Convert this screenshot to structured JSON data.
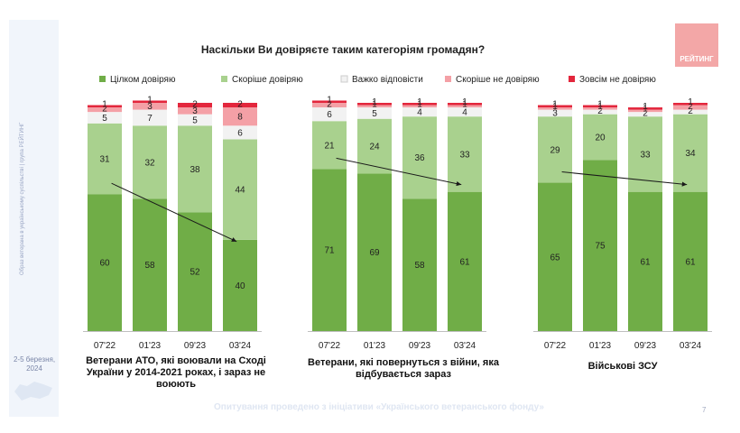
{
  "slide": {
    "title": "Наскільки Ви довіряєте таким категоріям громадян?",
    "logo_text": "РЕЙТИНГ",
    "sidebar_text": "Образ ветерана в українському суспільстві | група РЕЙТИНГ",
    "date_text": "2-5 березня, 2024",
    "footer": "Опитування проведено з ініціативи «Українського ветеранського фонду»",
    "page_number": "7"
  },
  "colors": {
    "full_trust": "#70ad47",
    "rather_trust": "#a9d18e",
    "hard_to_say": "#f2f2f2",
    "rather_not": "#f4a0a6",
    "no_trust": "#e3263c",
    "logo": "#f3a7a7"
  },
  "chart_data": {
    "type": "bar",
    "stacked": true,
    "ylim": [
      0,
      100
    ],
    "legend_position": "top",
    "series_names": [
      "Цілком довіряю",
      "Скоріше довіряю",
      "Важко відповісти",
      "Скоріше не довіряю",
      "Зовсім не довіряю"
    ],
    "groups": [
      {
        "label": "Ветерани АТО, які воювали на Сході України у 2014-2021 роках, і зараз не воюють",
        "categories": [
          "07'22",
          "01'23",
          "09'23",
          "03'24"
        ],
        "values": [
          [
            60,
            31,
            5,
            2,
            1
          ],
          [
            58,
            32,
            7,
            3,
            1
          ],
          [
            52,
            38,
            5,
            3,
            2
          ],
          [
            40,
            44,
            6,
            8,
            2
          ]
        ]
      },
      {
        "label": "Ветерани, які повернуться з війни, яка відбувається зараз",
        "categories": [
          "07'22",
          "01'23",
          "09'23",
          "03'24"
        ],
        "values": [
          [
            71,
            21,
            6,
            2,
            1
          ],
          [
            69,
            24,
            5,
            1,
            1
          ],
          [
            58,
            36,
            4,
            1,
            1
          ],
          [
            61,
            33,
            4,
            1,
            1
          ]
        ]
      },
      {
        "label": "Військові ЗСУ",
        "categories": [
          "07'22",
          "01'23",
          "09'23",
          "03'24"
        ],
        "values": [
          [
            65,
            29,
            3,
            1,
            1
          ],
          [
            75,
            20,
            2,
            1,
            1
          ],
          [
            61,
            33,
            2,
            1,
            1
          ],
          [
            61,
            34,
            2,
            2,
            1
          ]
        ]
      }
    ]
  }
}
